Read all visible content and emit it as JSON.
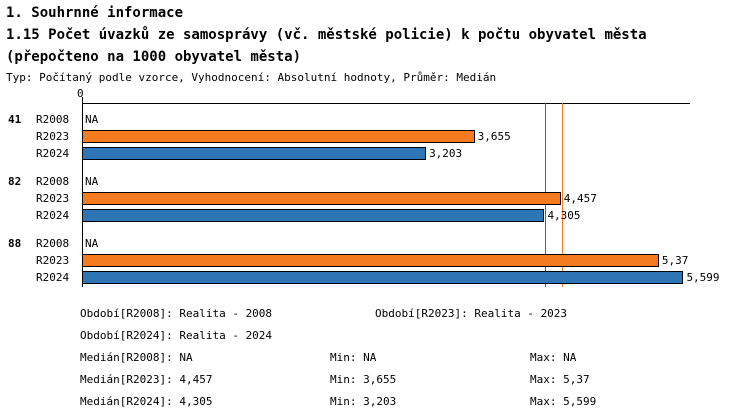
{
  "header": {
    "title_line1": "1. Souhrnné informace",
    "title_line2": "1.15 Počet úvazků ze samosprávy (vč. městské policie) k počtu obyvatel města (přepočteno na 1000 obyvatel města)",
    "subtitle": "Typ: Počítaný podle vzorce, Vyhodnocení: Absolutní hodnoty, Průměr: Medián"
  },
  "chart_data": {
    "type": "bar",
    "orientation": "horizontal",
    "x_axis": {
      "zero_label": "0",
      "xlim": [
        0,
        5.66
      ]
    },
    "legend_position": "none",
    "grid": false,
    "series_colors": {
      "R2023": "#F47B20",
      "R2024": "#2E75B6"
    },
    "median_lines": [
      {
        "series": "R2024",
        "value": 4.305,
        "color": "#008B8B"
      },
      {
        "series": "R2023",
        "value": 4.457,
        "color": "#F47B20"
      }
    ],
    "groups": [
      {
        "label": "41",
        "rows": [
          {
            "series": "R2008",
            "value": null,
            "value_label": "NA"
          },
          {
            "series": "R2023",
            "value": 3.655,
            "value_label": "3,655"
          },
          {
            "series": "R2024",
            "value": 3.203,
            "value_label": "3,203"
          }
        ]
      },
      {
        "label": "82",
        "rows": [
          {
            "series": "R2008",
            "value": null,
            "value_label": "NA"
          },
          {
            "series": "R2023",
            "value": 4.457,
            "value_label": "4,457"
          },
          {
            "series": "R2024",
            "value": 4.305,
            "value_label": "4,305"
          }
        ]
      },
      {
        "label": "88",
        "rows": [
          {
            "series": "R2008",
            "value": null,
            "value_label": "NA"
          },
          {
            "series": "R2023",
            "value": 5.37,
            "value_label": "5,37"
          },
          {
            "series": "R2024",
            "value": 5.599,
            "value_label": "5,599"
          }
        ]
      }
    ]
  },
  "footer": {
    "obdobi_r2008": "Období[R2008]: Realita - 2008",
    "obdobi_r2023": "Období[R2023]: Realita - 2023",
    "obdobi_r2024": "Období[R2024]: Realita - 2024",
    "stats": [
      {
        "median": "Medián[R2008]: NA",
        "min": "Min: NA",
        "max": "Max: NA"
      },
      {
        "median": "Medián[R2023]: 4,457",
        "min": "Min: 3,655",
        "max": "Max: 5,37"
      },
      {
        "median": "Medián[R2024]: 4,305",
        "min": "Min: 3,203",
        "max": "Max: 5,599"
      }
    ]
  }
}
